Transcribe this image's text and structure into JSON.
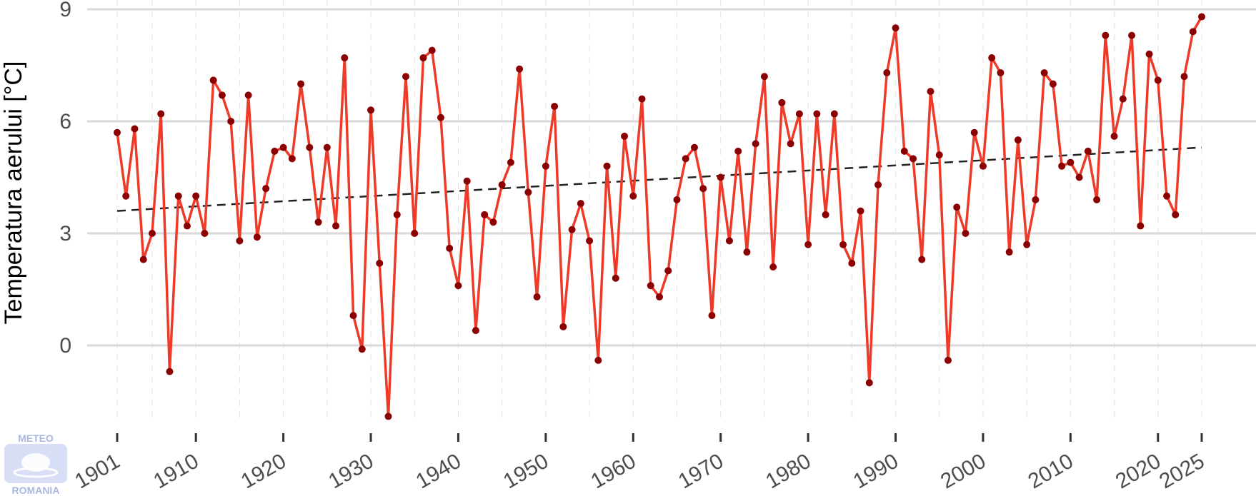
{
  "chart_data": {
    "type": "line",
    "title": "",
    "xlabel": "",
    "ylabel": "Temperatura aerului [°C]",
    "xlim": [
      1901,
      2025
    ],
    "ylim": [
      -2,
      9
    ],
    "yticks": [
      0,
      3,
      6,
      9
    ],
    "xticks": [
      1901,
      1910,
      1920,
      1930,
      1940,
      1950,
      1960,
      1970,
      1980,
      1990,
      2000,
      2010,
      2020,
      2025
    ],
    "grid": true,
    "legend": "none",
    "colors": {
      "line": "#ee3a28",
      "point": "#8b0000",
      "trend": "#222222",
      "grid": "#d9d9d9",
      "minor_grid": "#e6e6e6"
    },
    "series": [
      {
        "x": [
          1901,
          1902,
          1903,
          1904,
          1905,
          1906,
          1907,
          1908,
          1909,
          1910,
          1911,
          1912,
          1913,
          1914,
          1915,
          1916,
          1917,
          1918,
          1919,
          1920,
          1921,
          1922,
          1923,
          1924,
          1925,
          1926,
          1927,
          1928,
          1929,
          1930,
          1931,
          1932,
          1933,
          1934,
          1935,
          1936,
          1937,
          1938,
          1939,
          1940,
          1941,
          1942,
          1943,
          1944,
          1945,
          1946,
          1947,
          1948,
          1949,
          1950,
          1951,
          1952,
          1953,
          1954,
          1955,
          1956,
          1957,
          1958,
          1959,
          1960,
          1961,
          1962,
          1963,
          1964,
          1965,
          1966,
          1967,
          1968,
          1969,
          1970,
          1971,
          1972,
          1973,
          1974,
          1975,
          1976,
          1977,
          1978,
          1979,
          1980,
          1981,
          1982,
          1983,
          1984,
          1985,
          1986,
          1987,
          1988,
          1989,
          1990,
          1991,
          1992,
          1993,
          1994,
          1995,
          1996,
          1997,
          1998,
          1999,
          2000,
          2001,
          2002,
          2003,
          2004,
          2005,
          2006,
          2007,
          2008,
          2009,
          2010,
          2011,
          2012,
          2013,
          2014,
          2015,
          2016,
          2017,
          2018,
          2019,
          2020,
          2021,
          2022,
          2023,
          2024,
          2025
        ],
        "values": [
          5.7,
          4.0,
          5.8,
          2.3,
          3.0,
          6.2,
          -0.7,
          4.0,
          3.2,
          4.0,
          3.0,
          7.1,
          6.7,
          6.0,
          2.8,
          6.7,
          2.9,
          4.2,
          5.2,
          5.3,
          5.0,
          7.0,
          5.3,
          3.3,
          5.3,
          3.2,
          7.7,
          0.8,
          -0.1,
          6.3,
          2.2,
          -1.9,
          3.5,
          7.2,
          3.0,
          7.7,
          7.9,
          6.1,
          2.6,
          1.6,
          4.4,
          0.4,
          3.5,
          3.3,
          4.3,
          4.9,
          7.4,
          4.1,
          1.3,
          4.8,
          6.4,
          0.5,
          3.1,
          3.8,
          2.8,
          -0.4,
          4.8,
          1.8,
          5.6,
          4.0,
          6.6,
          1.6,
          1.3,
          2.0,
          3.9,
          5.0,
          5.3,
          4.2,
          0.8,
          4.5,
          2.8,
          5.2,
          2.5,
          5.4,
          7.2,
          2.1,
          6.5,
          5.4,
          6.2,
          2.7,
          6.2,
          3.5,
          6.2,
          2.7,
          2.2,
          3.6,
          -1.0,
          4.3,
          7.3,
          8.5,
          5.2,
          5.0,
          2.3,
          6.8,
          5.1,
          -0.4,
          3.7,
          3.0,
          5.7,
          4.8,
          7.7,
          7.3,
          2.5,
          5.5,
          2.7,
          3.9,
          7.3,
          7.0,
          4.8,
          4.9,
          4.5,
          5.2,
          3.9,
          8.3,
          5.6,
          6.6,
          8.3,
          3.2,
          7.8,
          7.1,
          4.0,
          3.5,
          7.2,
          8.4,
          8.8
        ]
      }
    ],
    "trendline": {
      "x": [
        1901,
        2025
      ],
      "values": [
        3.6,
        5.3
      ]
    }
  },
  "logo": {
    "top_text": "METEO",
    "bottom_text": "ROMANIA"
  }
}
